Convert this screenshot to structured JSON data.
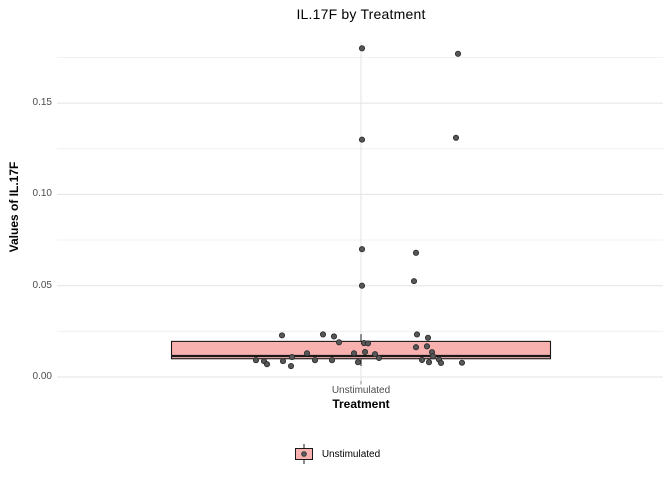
{
  "chart_data": {
    "type": "boxplot",
    "title": "IL.17F by Treatment",
    "xlabel": "Treatment",
    "ylabel": "Values of IL.17F",
    "categories": [
      "Unstimulated"
    ],
    "x_tick_labels": [
      "Unstimulated"
    ],
    "y_tick_labels": [
      "0.00",
      "0.05",
      "0.10",
      "0.15"
    ],
    "y_ticks": [
      0,
      0.05,
      0.1,
      0.15
    ],
    "y_minor_ticks": [
      0.025,
      0.075,
      0.125,
      0.175
    ],
    "ylim": [
      -0.002,
      0.1835
    ],
    "grid": true,
    "legend": {
      "position": "bottom",
      "entries": [
        {
          "label": "Unstimulated"
        }
      ]
    },
    "colors": {
      "box_fill": "#F9B1AF",
      "box_stroke": "#1a1a1a",
      "point_fill": "#575757",
      "point_stroke": "#2e2e2e",
      "grid_major": "#e3e3e3",
      "grid_minor": "#f1f1f1",
      "tick_mark": "#8a8a8a",
      "tick_text": "#4d4d4d",
      "title_text": "#000000"
    },
    "series": [
      {
        "name": "Unstimulated",
        "box": {
          "q1": 0.01,
          "median": 0.0115,
          "q3": 0.0195,
          "whisker_low": 0.006,
          "whisker_high": 0.0235
        },
        "points": [
          {
            "jx": 1,
            "v": 0.18
          },
          {
            "jx": 97,
            "v": 0.177
          },
          {
            "jx": 1,
            "v": 0.13
          },
          {
            "jx": 95,
            "v": 0.131
          },
          {
            "jx": 1,
            "v": 0.07
          },
          {
            "jx": 55,
            "v": 0.068
          },
          {
            "jx": 53,
            "v": 0.0525
          },
          {
            "jx": 1,
            "v": 0.05
          },
          {
            "jx": -79,
            "v": 0.0228
          },
          {
            "jx": -38,
            "v": 0.0233
          },
          {
            "jx": -27,
            "v": 0.0222
          },
          {
            "jx": 56,
            "v": 0.0233
          },
          {
            "jx": 67,
            "v": 0.0215
          },
          {
            "jx": -22,
            "v": 0.019
          },
          {
            "jx": 3,
            "v": 0.0186
          },
          {
            "jx": 7,
            "v": 0.0184
          },
          {
            "jx": 55,
            "v": 0.0163
          },
          {
            "jx": 66,
            "v": 0.0168
          },
          {
            "jx": -7,
            "v": 0.013
          },
          {
            "jx": 4,
            "v": 0.0137
          },
          {
            "jx": 14,
            "v": 0.0125
          },
          {
            "jx": 18,
            "v": 0.0104
          },
          {
            "jx": 71,
            "v": 0.0136
          },
          {
            "jx": 72,
            "v": 0.0114
          },
          {
            "jx": -54,
            "v": 0.013
          },
          {
            "jx": -105,
            "v": 0.0092
          },
          {
            "jx": -97,
            "v": 0.0087
          },
          {
            "jx": -78,
            "v": 0.0087
          },
          {
            "jx": -69,
            "v": 0.0109
          },
          {
            "jx": -70,
            "v": 0.006
          },
          {
            "jx": -46,
            "v": 0.0092
          },
          {
            "jx": -29,
            "v": 0.0092
          },
          {
            "jx": -3,
            "v": 0.0081
          },
          {
            "jx": 61,
            "v": 0.0093
          },
          {
            "jx": 68,
            "v": 0.0081
          },
          {
            "jx": 78,
            "v": 0.0095
          },
          {
            "jx": 80,
            "v": 0.0077
          },
          {
            "jx": 101,
            "v": 0.0078
          },
          {
            "jx": -94,
            "v": 0.007
          }
        ]
      }
    ]
  }
}
